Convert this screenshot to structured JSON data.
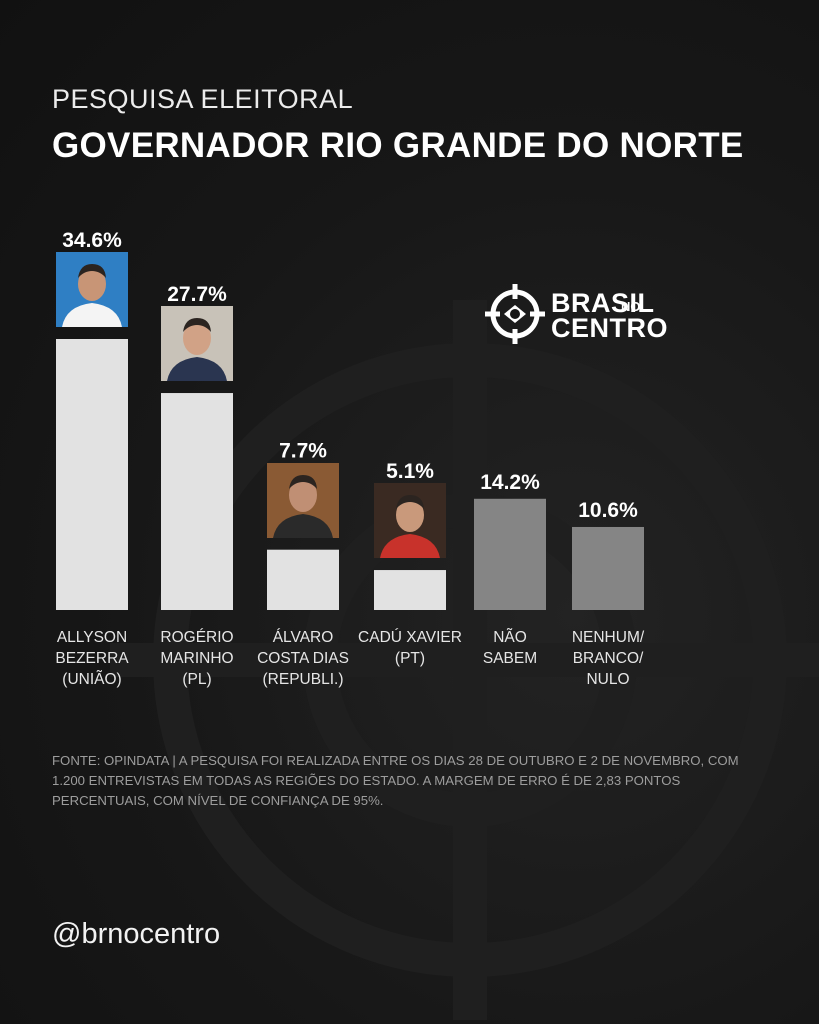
{
  "header": {
    "subtitle": "PESQUISA ELEITORAL",
    "title": "GOVERNADOR RIO GRANDE DO NORTE"
  },
  "logo": {
    "line1": "BRASIL",
    "line1_small": "NO",
    "line2": "CENTRO",
    "icon": "crosshair-brazil-icon"
  },
  "chart_data": {
    "type": "bar",
    "title": "GOVERNADOR RIO GRANDE DO NORTE",
    "categories": [
      "ALLYSON BEZERRA (UNIÃO)",
      "ROGÉRIO MARINHO (PL)",
      "ÁLVARO COSTA DIAS (REPUBLI.)",
      "CADÚ XAVIER (PT)",
      "NÃO SABEM",
      "NENHUM/ BRANCO/ NULO"
    ],
    "category_lines": [
      [
        "ALLYSON",
        "BEZERRA",
        "(UNIÃO)"
      ],
      [
        "ROGÉRIO",
        "MARINHO",
        "(PL)"
      ],
      [
        "ÁLVARO",
        "COSTA DIAS",
        "(REPUBLI.)"
      ],
      [
        "CADÚ XAVIER",
        "(PT)"
      ],
      [
        "NÃO",
        "SABEM"
      ],
      [
        "NENHUM/",
        "BRANCO/",
        "NULO"
      ]
    ],
    "values": [
      34.6,
      27.7,
      7.7,
      5.1,
      14.2,
      10.6
    ],
    "value_labels": [
      "34.6%",
      "27.7%",
      "7.7%",
      "5.1%",
      "14.2%",
      "10.6%"
    ],
    "unit": "%",
    "has_photo": [
      true,
      true,
      true,
      true,
      false,
      false
    ],
    "bar_colors": [
      "#e2e2e2",
      "#e2e2e2",
      "#e2e2e2",
      "#e2e2e2",
      "#858585",
      "#858585"
    ],
    "ylim": [
      0,
      34.6
    ],
    "grid": false
  },
  "footer": {
    "note": "FONTE: OPINDATA | A PESQUISA FOI REALIZADA ENTRE OS DIAS 28 DE OUTUBRO E 2 DE NOVEMBRO, COM 1.200 ENTREVISTAS EM TODAS AS REGIÕES DO ESTADO. A MARGEM DE ERRO É DE 2,83 PONTOS PERCENTUAIS, COM NÍVEL DE CONFIANÇA DE 95%.",
    "handle": "@brnocentro"
  },
  "colors": {
    "background": "#161616",
    "candidate_bar": "#e2e2e2",
    "other_bar": "#858585",
    "text": "#ffffff"
  }
}
